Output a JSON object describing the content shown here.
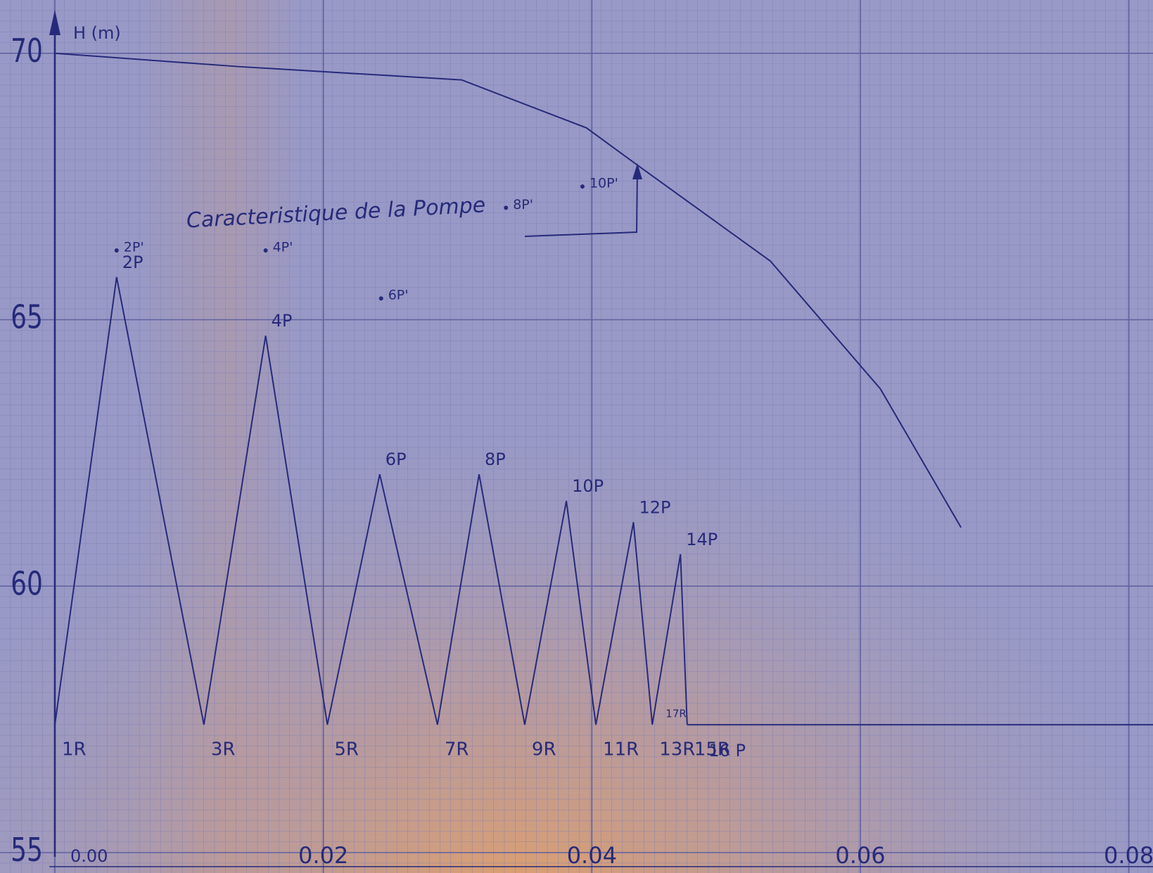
{
  "chart_data": {
    "type": "line",
    "y_label": "H (m)",
    "xlim": [
      0,
      0.0818
    ],
    "ylim": [
      55,
      71
    ],
    "xticks": [
      {
        "value": 0,
        "label": "0.00"
      },
      0.02,
      0.04,
      0.06,
      0.08
    ],
    "yticks": [
      55,
      60,
      65,
      70
    ],
    "grid": true,
    "series": [
      {
        "name": "Caracteristique de la Pompe",
        "color": "#262a7a",
        "x": [
          0,
          0.0137,
          0.0303,
          0.0396,
          0.0434,
          0.0533,
          0.0615,
          0.0675
        ],
        "values": [
          70,
          69.75,
          69.5,
          68.6,
          67.9,
          66.1,
          63.7,
          61.1
        ]
      },
      {
        "color": "#262a7a",
        "x": [
          0,
          0.0046,
          0.0111,
          0.0157,
          0.0203,
          0.0242,
          0.0285,
          0.0316,
          0.035,
          0.0381,
          0.0403,
          0.0431,
          0.0445,
          0.0466,
          0.0471
        ],
        "values": [
          57.4,
          65.8,
          57.4,
          64.7,
          57.4,
          62.1,
          57.4,
          62.1,
          57.4,
          61.6,
          57.4,
          61.2,
          57.4,
          60.6,
          57.4
        ],
        "point_labels": [
          "1R",
          "2P",
          "3R",
          "4P",
          "5R",
          "6P",
          "7R",
          "8P",
          "9R",
          "10P",
          "11R",
          "12P",
          "13R",
          "14P",
          "15R"
        ]
      },
      {
        "color": "#262a7a",
        "x": [
          0.0471,
          0.0818
        ],
        "values": [
          57.4,
          57.4
        ]
      },
      {
        "type": "scatter",
        "color": "#262a7a",
        "x": [
          0.0046,
          0.0157,
          0.0243,
          0.0336,
          0.0393
        ],
        "values": [
          66.3,
          66.3,
          65.4,
          67.1,
          67.5
        ],
        "point_labels": [
          "2P'",
          "4P'",
          "6P'",
          "8P'",
          "10P'"
        ]
      }
    ],
    "annotations": [
      {
        "text": "17R",
        "x": 0.0455,
        "y": 57.6
      },
      {
        "text": "16 P",
        "x": 0.0487,
        "y": 56.9
      }
    ]
  }
}
